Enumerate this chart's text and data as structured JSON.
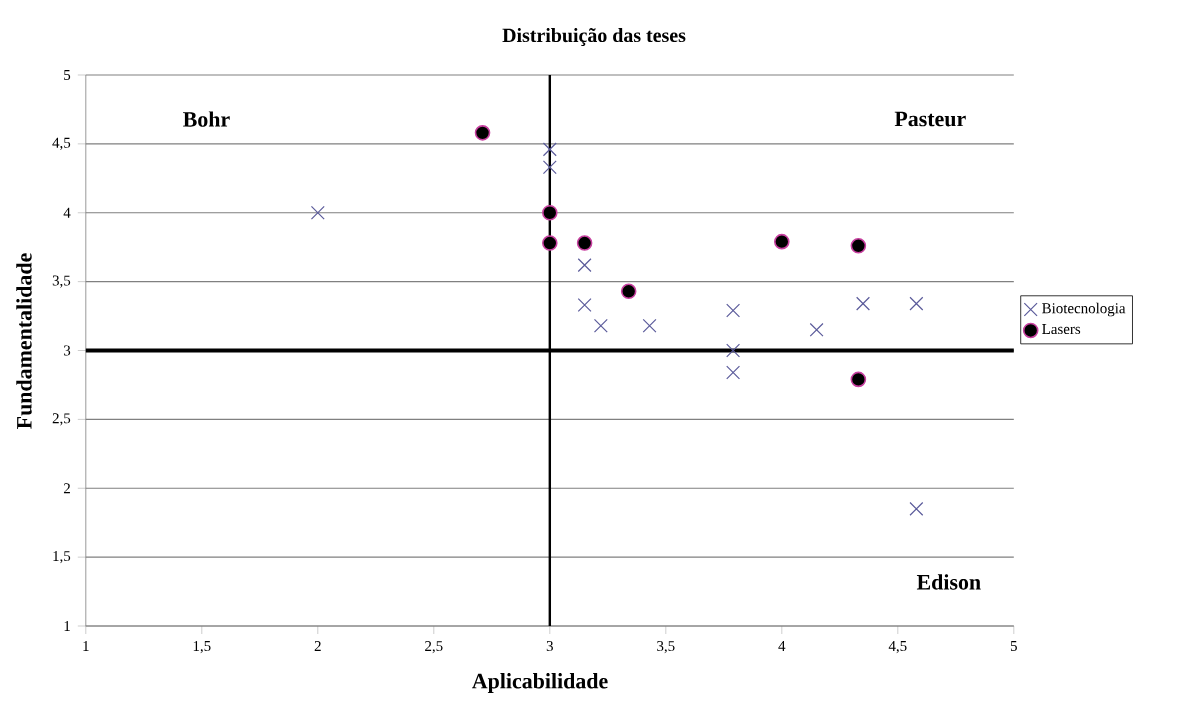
{
  "chart_data": {
    "type": "scatter",
    "title": "Distribuição das teses",
    "xlabel": "Aplicabilidade",
    "ylabel": "Fundamentalidade",
    "xlim": [
      1,
      5
    ],
    "ylim": [
      1,
      5
    ],
    "xticks": [
      1,
      {
        "value": 1.5,
        "label": "1,5"
      },
      2,
      {
        "value": 2.5,
        "label": "2,5"
      },
      3,
      {
        "value": 3.5,
        "label": "3,5"
      },
      4,
      {
        "value": 4.5,
        "label": "4,5"
      },
      5
    ],
    "yticks": [
      1,
      {
        "value": 1.5,
        "label": "1,5"
      },
      2,
      {
        "value": 2.5,
        "label": "2,5"
      },
      3,
      {
        "value": 3.5,
        "label": "3,5"
      },
      4,
      {
        "value": 4.5,
        "label": "4,5"
      },
      5
    ],
    "grid": "y",
    "legend": "right",
    "series": [
      {
        "name": "Biotecnologia",
        "color": "#5a5a9a",
        "marker": "cross",
        "x": [
          2.0,
          3.0,
          3.0,
          3.15,
          3.15,
          3.22,
          3.43,
          3.79,
          3.79,
          3.79,
          4.15,
          4.35,
          4.58,
          4.58
        ],
        "values": [
          4.0,
          4.46,
          4.33,
          3.62,
          3.33,
          3.18,
          3.18,
          3.29,
          3.0,
          2.84,
          3.15,
          3.34,
          3.34,
          1.85
        ]
      },
      {
        "name": "Lasers",
        "color": "#000000",
        "marker": "circle",
        "x": [
          2.71,
          3.0,
          3.0,
          3.15,
          3.34,
          4.0,
          4.33,
          4.33
        ],
        "values": [
          4.58,
          4.0,
          3.78,
          3.78,
          3.43,
          3.79,
          3.76,
          2.79
        ]
      }
    ],
    "ref_lines": [
      {
        "axis": "x",
        "value": 3
      },
      {
        "axis": "y",
        "value": 3
      }
    ],
    "annotations": [
      "Bohr",
      "Pasteur",
      "Edison"
    ]
  }
}
